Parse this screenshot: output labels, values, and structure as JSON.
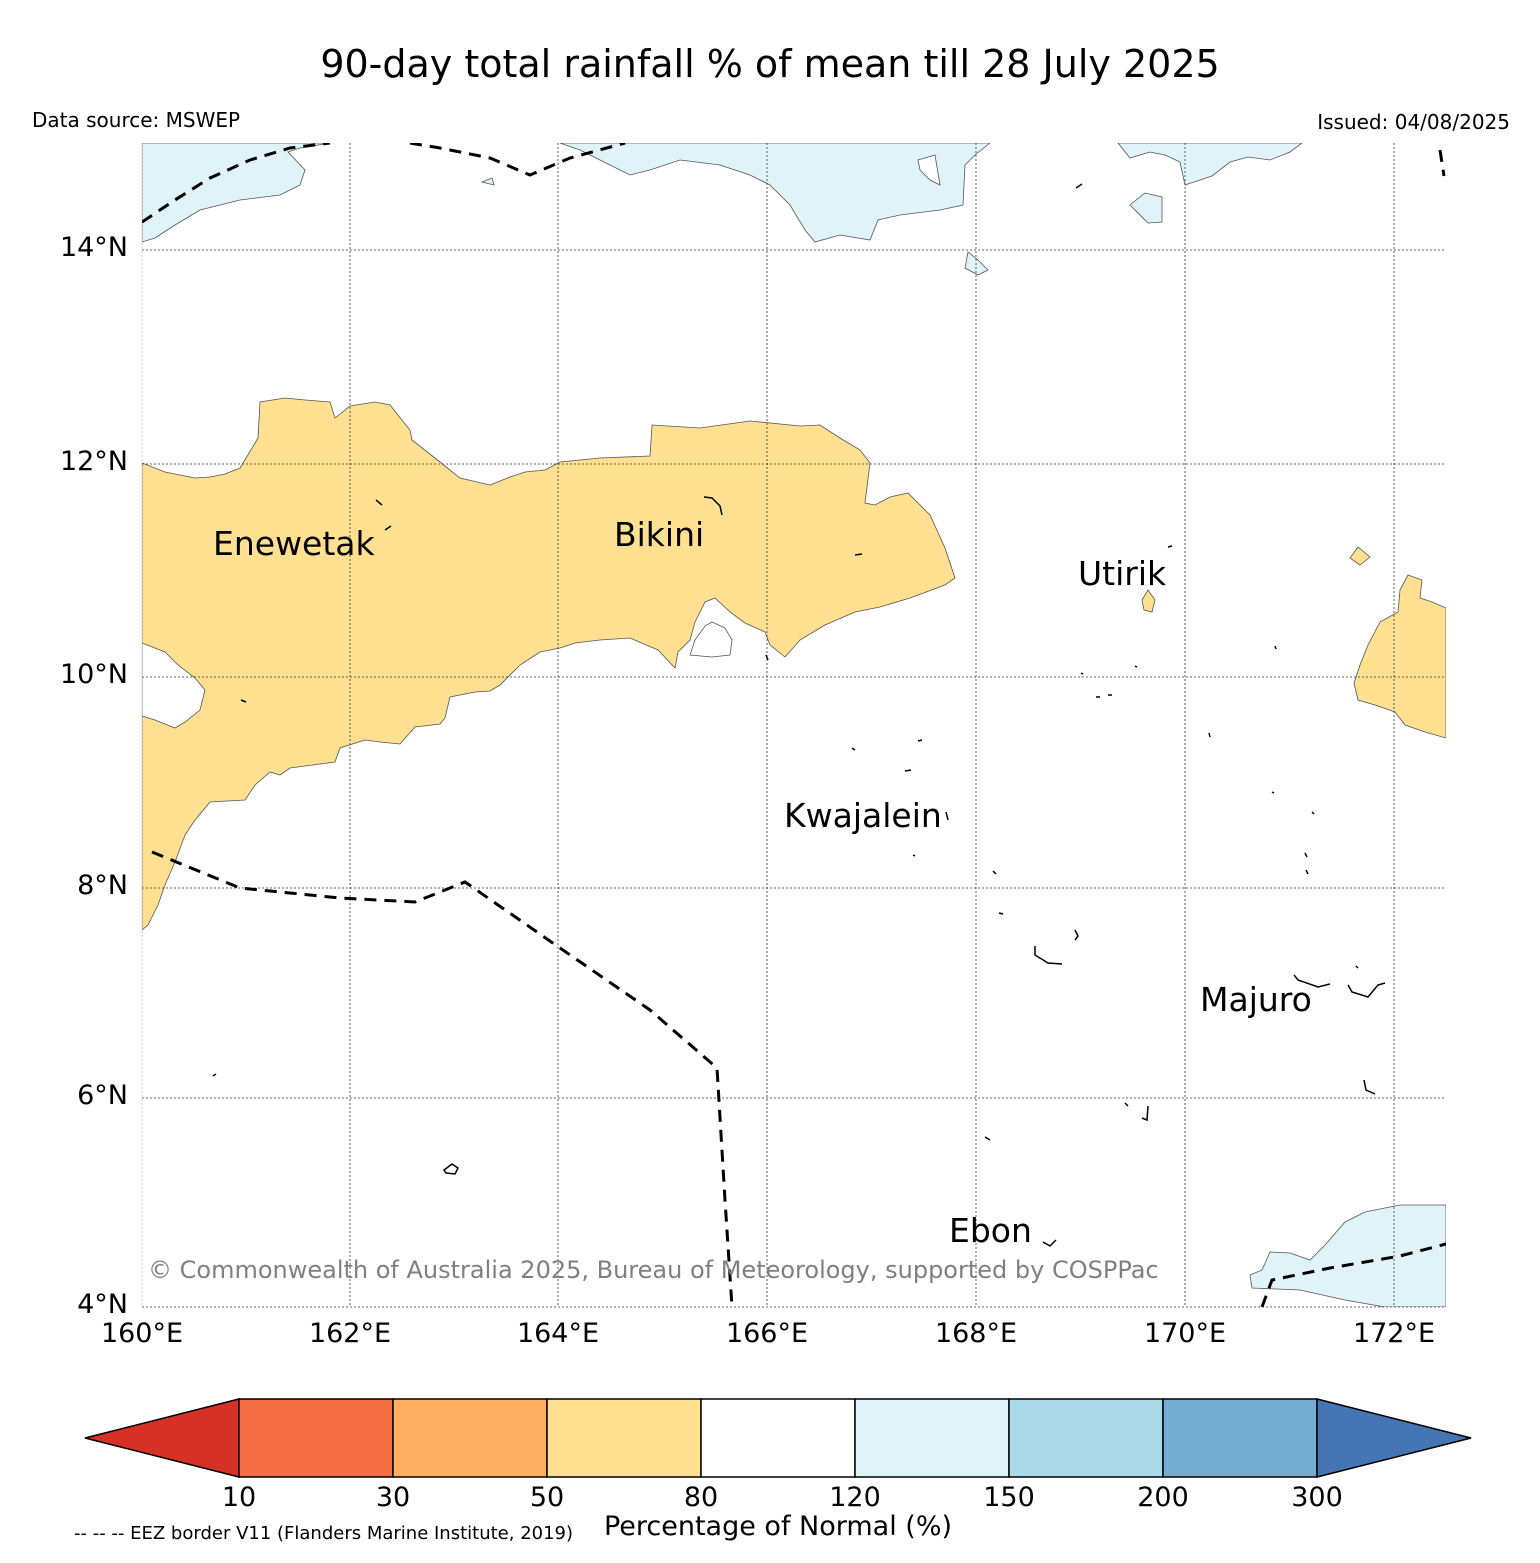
{
  "title": "90-day total rainfall % of mean till 28 July 2025",
  "data_source": "Data source: MSWEP",
  "issued": "Issued: 04/08/2025",
  "copyright": "© Commonwealth of Australia 2025, Bureau of Meteorology, supported by COSPPac",
  "eez_note": "-- -- -- EEZ border V11 (Flanders Marine Institute, 2019)",
  "axes": {
    "lat_labels": [
      "14°N",
      "12°N",
      "10°N",
      "8°N",
      "6°N",
      "4°N"
    ],
    "lon_labels": [
      "160°E",
      "162°E",
      "164°E",
      "166°E",
      "168°E",
      "170°E",
      "172°E"
    ],
    "lat_range": [
      4,
      15
    ],
    "lon_range": [
      160,
      172.5
    ],
    "grid": true
  },
  "places": {
    "enewetak": "Enewetak",
    "bikini": "Bikini",
    "utirik": "Utirik",
    "kwajalein": "Kwajalein",
    "majuro": "Majuro",
    "ebon": "Ebon"
  },
  "colorbar": {
    "title": "Percentage of Normal (%)",
    "tick_labels": [
      "10",
      "30",
      "50",
      "80",
      "120",
      "150",
      "200",
      "300"
    ],
    "colors": [
      "#d73027",
      "#f46d43",
      "#fdae61",
      "#fee090",
      "#ffffff",
      "#e0f3f8",
      "#abd9e9",
      "#74add1",
      "#4575b4"
    ]
  },
  "chart_data": {
    "type": "heatmap",
    "title": "90-day total rainfall % of mean till 28 July 2025",
    "xlabel": "",
    "ylabel": "",
    "x_ticks": [
      "160°E",
      "162°E",
      "164°E",
      "166°E",
      "168°E",
      "170°E",
      "172°E"
    ],
    "y_ticks": [
      "4°N",
      "6°N",
      "8°N",
      "10°N",
      "12°N",
      "14°N"
    ],
    "xlim": [
      160,
      172.5
    ],
    "ylim": [
      4,
      15
    ],
    "legend": "colorbar bottom",
    "colorbar_levels": [
      10,
      30,
      50,
      80,
      120,
      150,
      200,
      300
    ],
    "regions": [
      {
        "category": "50-80",
        "color": "#fee090",
        "description_location": "western belt 160-167.8E, 7.6-12.5N"
      },
      {
        "category": "50-80",
        "color": "#fee090",
        "description_location": "eastern edge near 172E, 9.5-11N"
      },
      {
        "category": "120-150",
        "color": "#e0f3f8",
        "description_location": "northern edge above 14N"
      },
      {
        "category": "120-150",
        "color": "#e0f3f8",
        "description_location": "south-east corner near 171-172.5E, 4-5N"
      }
    ]
  }
}
